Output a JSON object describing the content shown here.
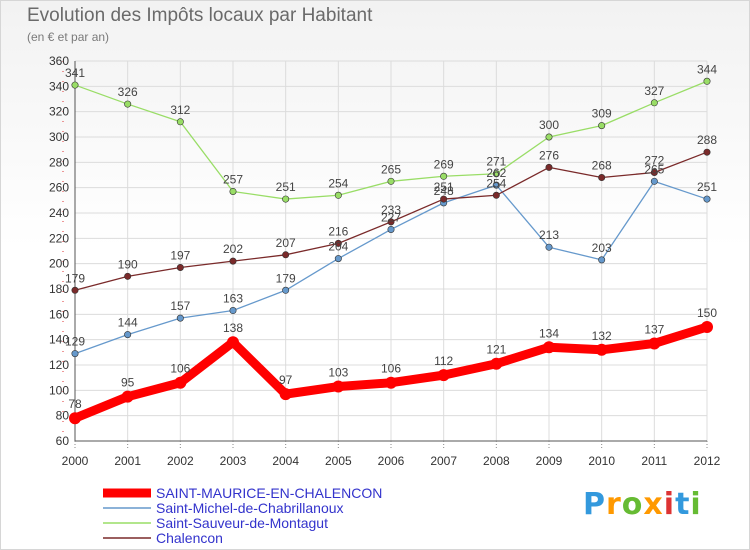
{
  "title": "Evolution des Impôts locaux par Habitant",
  "subtitle": "(en € et par an)",
  "logo": "Proxiti",
  "colors": {
    "grid": "#dcdcdc",
    "axis": "#555555"
  },
  "chart_data": {
    "type": "line",
    "x": [
      "2000",
      "2001",
      "2002",
      "2003",
      "2004",
      "2005",
      "2006",
      "2007",
      "2008",
      "2009",
      "2010",
      "2011",
      "2012"
    ],
    "ylim": [
      60,
      360
    ],
    "yticks": [
      60,
      80,
      100,
      120,
      140,
      160,
      180,
      200,
      220,
      240,
      260,
      280,
      300,
      320,
      340,
      360
    ],
    "grid": true,
    "legend_position": "bottom-left",
    "series": [
      {
        "name": "SAINT-MAURICE-EN-CHALENCON",
        "color": "#ff0000",
        "legend_text_color": "#3333cc",
        "thick": true,
        "values": [
          78,
          95,
          106,
          138,
          97,
          103,
          106,
          112,
          121,
          134,
          132,
          137,
          150
        ]
      },
      {
        "name": "Saint-Michel-de-Chabrillanoux",
        "color": "#6699cc",
        "legend_text_color": "#3333cc",
        "thick": false,
        "values": [
          129,
          144,
          157,
          163,
          179,
          204,
          227,
          248,
          262,
          213,
          203,
          265,
          251
        ]
      },
      {
        "name": "Saint-Sauveur-de-Montagut",
        "color": "#99dd66",
        "legend_text_color": "#3333cc",
        "thick": false,
        "values": [
          341,
          326,
          312,
          257,
          251,
          254,
          265,
          269,
          271,
          300,
          309,
          327,
          344
        ]
      },
      {
        "name": "Chalencon",
        "color": "#7a2a2a",
        "legend_text_color": "#3333cc",
        "thick": false,
        "values": [
          179,
          190,
          197,
          202,
          207,
          216,
          233,
          251,
          254,
          276,
          268,
          272,
          288
        ]
      }
    ]
  }
}
